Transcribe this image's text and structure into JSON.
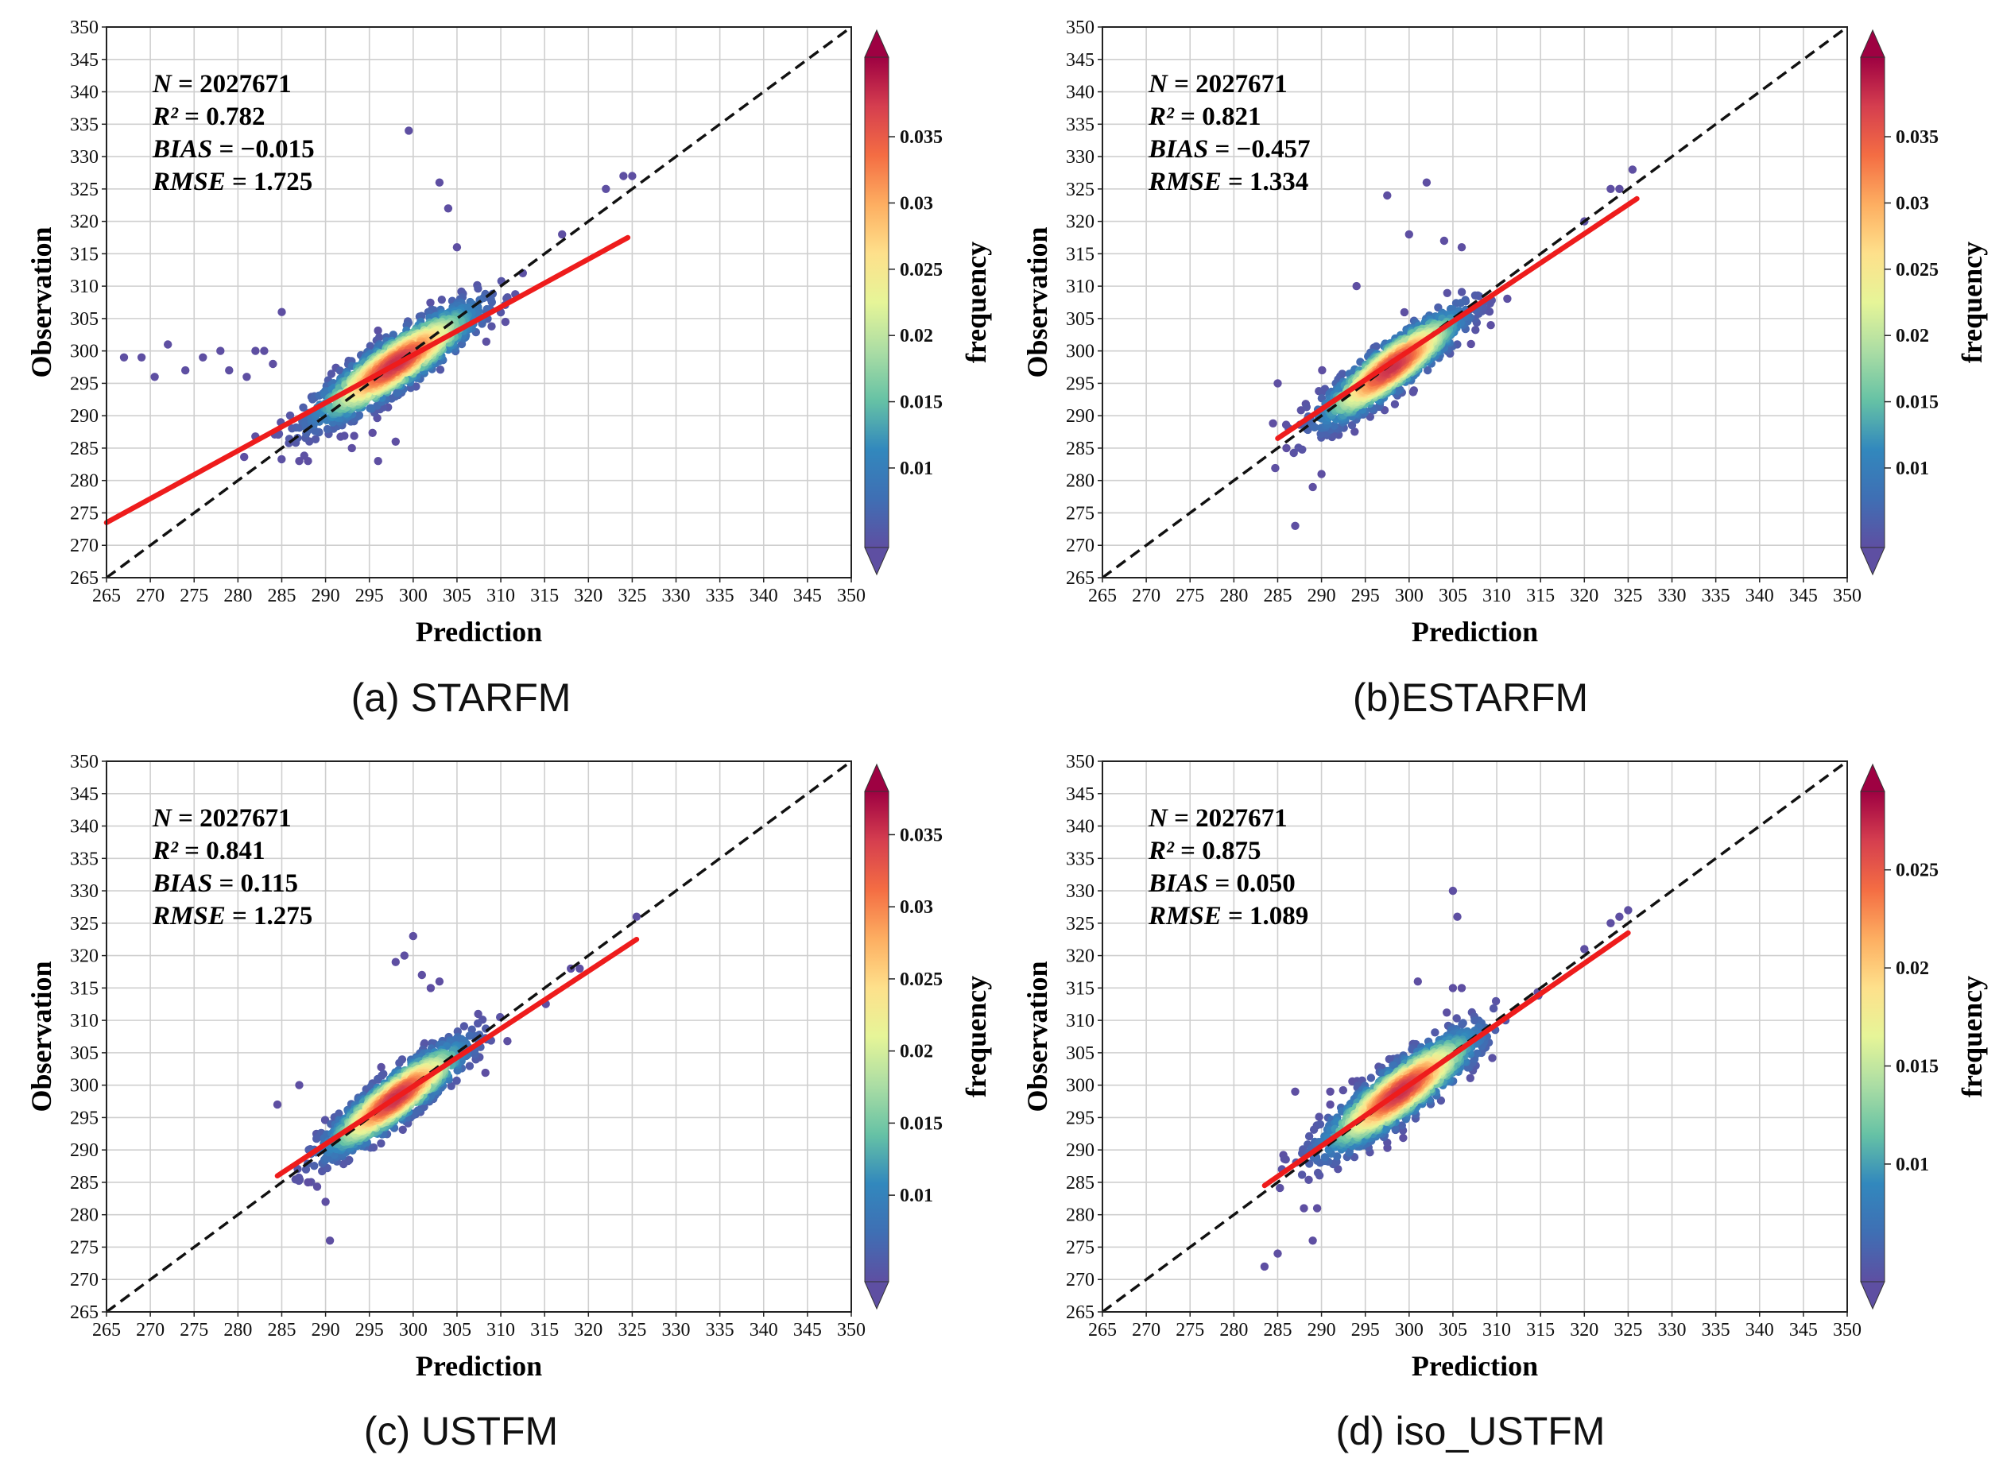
{
  "colors": {
    "fit_line": "#ee1c1c",
    "identity_line": "#111111",
    "grid": "#cfcfcf",
    "colormap": [
      "#5e4fa2",
      "#3f6fb4",
      "#3288bd",
      "#66c2a5",
      "#abdda4",
      "#e6f598",
      "#fee08b",
      "#fdae61",
      "#f46d43",
      "#d53e4f",
      "#9e0142"
    ]
  },
  "chart_data": [
    {
      "type": "scatter",
      "caption": "(a) STARFM",
      "xlabel": "Prediction",
      "ylabel": "Observation",
      "xlim": [
        265,
        350
      ],
      "ylim": [
        265,
        350
      ],
      "xticks": [
        265,
        270,
        275,
        280,
        285,
        290,
        295,
        300,
        305,
        310,
        315,
        320,
        325,
        330,
        335,
        340,
        345,
        350
      ],
      "yticks": [
        265,
        270,
        275,
        280,
        285,
        290,
        295,
        300,
        305,
        310,
        315,
        320,
        325,
        330,
        335,
        340,
        345,
        350
      ],
      "grid": true,
      "stats": [
        {
          "label": "N",
          "op": "=",
          "value": "2027671"
        },
        {
          "label": "R²",
          "op": "=",
          "value": "0.782"
        },
        {
          "label": "BIAS",
          "op": "=",
          "value": "−0.015"
        },
        {
          "label": "RMSE",
          "op": "=",
          "value": "1.725"
        }
      ],
      "fit_line": [
        [
          265,
          273.5
        ],
        [
          324.5,
          317.5
        ]
      ],
      "identity_line": [
        [
          265,
          265
        ],
        [
          350,
          350
        ]
      ],
      "colorbar": {
        "label": "frequency",
        "ticks": [
          "0.01",
          "0.015",
          "0.02",
          "0.025",
          "0.03",
          "0.035"
        ],
        "ticks_value": [
          0.01,
          0.015,
          0.02,
          0.025,
          0.03,
          0.035
        ],
        "min": 0.004,
        "max": 0.041
      },
      "point_cloud": {
        "center": [
          298,
          298
        ],
        "spread_x": 4.6,
        "spread_y": 3.8,
        "slope": 0.85,
        "count": 1400
      },
      "outliers": [
        [
          299.5,
          334
        ],
        [
          303,
          326
        ],
        [
          304,
          322
        ],
        [
          305,
          316
        ],
        [
          322,
          325
        ],
        [
          324,
          327
        ],
        [
          325,
          327
        ],
        [
          317,
          318
        ],
        [
          267,
          299
        ],
        [
          269,
          299
        ],
        [
          270.5,
          296
        ],
        [
          272,
          301
        ],
        [
          274,
          297
        ],
        [
          276,
          299
        ],
        [
          278,
          300
        ],
        [
          279,
          297
        ],
        [
          281,
          296
        ],
        [
          282,
          300
        ],
        [
          283,
          300
        ],
        [
          284,
          298
        ],
        [
          285,
          306
        ],
        [
          287,
          283
        ],
        [
          288,
          283
        ],
        [
          296,
          283
        ],
        [
          298,
          286
        ],
        [
          293,
          285
        ]
      ]
    },
    {
      "type": "scatter",
      "caption": "(b)ESTARFM",
      "xlabel": "Prediction",
      "ylabel": "Observation",
      "xlim": [
        265,
        350
      ],
      "ylim": [
        265,
        350
      ],
      "xticks": [
        265,
        270,
        275,
        280,
        285,
        290,
        295,
        300,
        305,
        310,
        315,
        320,
        325,
        330,
        335,
        340,
        345,
        350
      ],
      "yticks": [
        265,
        270,
        275,
        280,
        285,
        290,
        295,
        300,
        305,
        310,
        315,
        320,
        325,
        330,
        335,
        340,
        345,
        350
      ],
      "grid": true,
      "stats": [
        {
          "label": "N",
          "op": "=",
          "value": "2027671"
        },
        {
          "label": "R²",
          "op": "=",
          "value": "0.821"
        },
        {
          "label": "BIAS",
          "op": "=",
          "value": "−0.457"
        },
        {
          "label": "RMSE",
          "op": "=",
          "value": "1.334"
        }
      ],
      "fit_line": [
        [
          285,
          286.5
        ],
        [
          326,
          323.5
        ]
      ],
      "identity_line": [
        [
          265,
          265
        ],
        [
          350,
          350
        ]
      ],
      "colorbar": {
        "label": "frequency",
        "ticks": [
          "0.01",
          "0.015",
          "0.02",
          "0.025",
          "0.03",
          "0.035"
        ],
        "ticks_value": [
          0.01,
          0.015,
          0.02,
          0.025,
          0.03,
          0.035
        ],
        "min": 0.004,
        "max": 0.041
      },
      "point_cloud": {
        "center": [
          298,
          297.5
        ],
        "spread_x": 4.0,
        "spread_y": 3.6,
        "slope": 0.95,
        "count": 1300
      },
      "outliers": [
        [
          297.5,
          324
        ],
        [
          302,
          326
        ],
        [
          300,
          318
        ],
        [
          324,
          325
        ],
        [
          325.5,
          328
        ],
        [
          323,
          325
        ],
        [
          287,
          273
        ],
        [
          289,
          279
        ],
        [
          290,
          281
        ],
        [
          285,
          295
        ],
        [
          286,
          285
        ],
        [
          304,
          317
        ],
        [
          306,
          316
        ],
        [
          294,
          310
        ],
        [
          320,
          320
        ]
      ]
    },
    {
      "type": "scatter",
      "caption": "(c) USTFM",
      "xlabel": "Prediction",
      "ylabel": "Observation",
      "xlim": [
        265,
        350
      ],
      "ylim": [
        265,
        350
      ],
      "xticks": [
        265,
        270,
        275,
        280,
        285,
        290,
        295,
        300,
        305,
        310,
        315,
        320,
        325,
        330,
        335,
        340,
        345,
        350
      ],
      "yticks": [
        265,
        270,
        275,
        280,
        285,
        290,
        295,
        300,
        305,
        310,
        315,
        320,
        325,
        330,
        335,
        340,
        345,
        350
      ],
      "grid": true,
      "stats": [
        {
          "label": "N",
          "op": "=",
          "value": "2027671"
        },
        {
          "label": "R²",
          "op": "=",
          "value": "0.841"
        },
        {
          "label": "BIAS",
          "op": "=",
          "value": "0.115"
        },
        {
          "label": "RMSE",
          "op": "=",
          "value": "1.275"
        }
      ],
      "fit_line": [
        [
          284.5,
          286
        ],
        [
          325.5,
          322.5
        ]
      ],
      "identity_line": [
        [
          265,
          265
        ],
        [
          350,
          350
        ]
      ],
      "colorbar": {
        "label": "frequency",
        "ticks": [
          "0.01",
          "0.015",
          "0.02",
          "0.025",
          "0.03",
          "0.035"
        ],
        "ticks_value": [
          0.01,
          0.015,
          0.02,
          0.025,
          0.03,
          0.035
        ],
        "min": 0.004,
        "max": 0.038
      },
      "point_cloud": {
        "center": [
          298,
          298
        ],
        "spread_x": 4.0,
        "spread_y": 3.5,
        "slope": 0.95,
        "count": 1300
      },
      "outliers": [
        [
          300,
          323
        ],
        [
          299,
          320
        ],
        [
          298,
          319
        ],
        [
          301,
          317
        ],
        [
          302,
          315
        ],
        [
          318,
          318
        ],
        [
          319,
          318
        ],
        [
          325.5,
          326
        ],
        [
          284.5,
          297
        ],
        [
          290,
          282
        ],
        [
          290.5,
          276
        ],
        [
          288,
          285
        ],
        [
          287,
          300
        ],
        [
          303,
          316
        ]
      ]
    },
    {
      "type": "scatter",
      "caption": "(d) iso_USTFM",
      "xlabel": "Prediction",
      "ylabel": "Observation",
      "xlim": [
        265,
        350
      ],
      "ylim": [
        265,
        350
      ],
      "xticks": [
        265,
        270,
        275,
        280,
        285,
        290,
        295,
        300,
        305,
        310,
        315,
        320,
        325,
        330,
        335,
        340,
        345,
        350
      ],
      "yticks": [
        265,
        270,
        275,
        280,
        285,
        290,
        295,
        300,
        305,
        310,
        315,
        320,
        325,
        330,
        335,
        340,
        345,
        350
      ],
      "grid": true,
      "stats": [
        {
          "label": "N",
          "op": "=",
          "value": "2027671"
        },
        {
          "label": "R²",
          "op": "=",
          "value": "0.875"
        },
        {
          "label": "BIAS",
          "op": "=",
          "value": "0.050"
        },
        {
          "label": "RMSE",
          "op": "=",
          "value": "1.089"
        }
      ],
      "fit_line": [
        [
          283.5,
          284.5
        ],
        [
          325,
          323.5
        ]
      ],
      "identity_line": [
        [
          265,
          265
        ],
        [
          350,
          350
        ]
      ],
      "colorbar": {
        "label": "frequency",
        "ticks": [
          "0.01",
          "0.015",
          "0.02",
          "0.025"
        ],
        "ticks_value": [
          0.01,
          0.015,
          0.02,
          0.025
        ],
        "min": 0.004,
        "max": 0.029
      },
      "point_cloud": {
        "center": [
          299,
          299
        ],
        "spread_x": 4.4,
        "spread_y": 4.0,
        "slope": 0.93,
        "count": 1400
      },
      "outliers": [
        [
          305,
          330
        ],
        [
          305.5,
          326
        ],
        [
          305,
          315
        ],
        [
          306,
          315
        ],
        [
          301,
          316
        ],
        [
          320,
          321
        ],
        [
          323,
          325
        ],
        [
          324,
          326
        ],
        [
          325,
          327
        ],
        [
          283.5,
          272
        ],
        [
          285,
          274
        ],
        [
          289,
          276
        ],
        [
          288,
          281
        ],
        [
          289.5,
          281
        ],
        [
          287,
          299
        ],
        [
          291,
          299
        ],
        [
          291,
          297
        ]
      ]
    }
  ]
}
